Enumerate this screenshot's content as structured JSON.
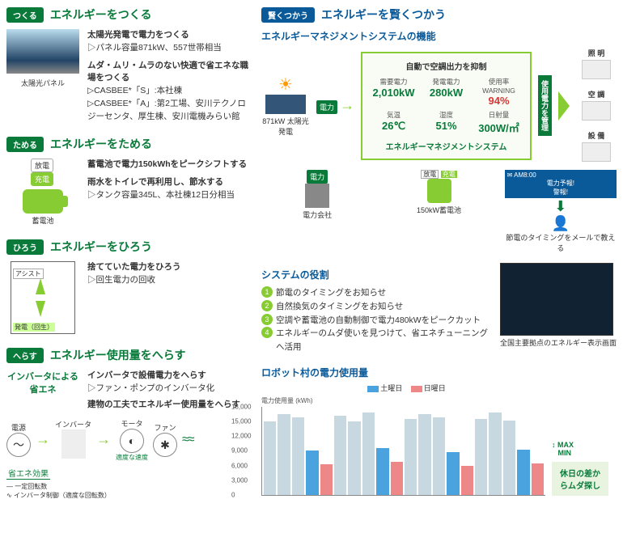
{
  "left": {
    "tsukuru": {
      "badge": "つくる",
      "title": "エネルギーをつくる",
      "icon_label": "太陽光パネル",
      "line1": "太陽光発電で電力をつくる",
      "line2": "▷パネル容量871kW、557世帯相当",
      "line3": "ムダ・ムリ・ムラのない快適で省エネな職場をつくる",
      "line4": "▷CASBEE*「S」:本社棟",
      "line5": "▷CASBEE*「A」:第2工場、安川テクノロジーセンタ、厚生棟、安川電機みらい館"
    },
    "tameru": {
      "badge": "ためる",
      "title": "エネルギーをためる",
      "tag1": "放電",
      "tag2": "充電",
      "icon_label": "蓄電池",
      "line1": "蓄電池で電力150kWhをピークシフトする",
      "line2": "雨水をトイレで再利用し、節水する",
      "line3": "▷タンク容量345L、本社棟12日分相当"
    },
    "hirou": {
      "badge": "ひろう",
      "title": "エネルギーをひろう",
      "assist": "アシスト",
      "gen": "発電（回生）",
      "line1": "捨てていた電力をひろう",
      "line2": "▷回生電力の回收"
    },
    "herasu": {
      "badge": "へらす",
      "title": "エネルギー使用量をへらす",
      "side_label": "インバータによる省エネ",
      "line1": "インバータで設備電力をへらす",
      "line2": "▷ファン・ポンプのインバータ化",
      "line3": "建物の工夫でエネルギー使用量をへらす",
      "d_power": "電源",
      "d_inv": "インバータ",
      "d_motor": "モータ",
      "d_fan": "ファン",
      "d_speed": "適度な速度",
      "d_eff": "省エネ効果",
      "d_const": "一定回転数",
      "d_ctrl": "インバータ制御（適度な回転数）"
    }
  },
  "right": {
    "header": {
      "badge": "賢くつかう",
      "title": "エネルギーを賢くつかう"
    },
    "ems_title": "エネルギーマネジメントシステムの機能",
    "solar_label": "871kW 太陽光発電",
    "denryoku": "電力",
    "box": {
      "title": "自動で空調出力を抑制",
      "c1l": "需要電力",
      "c1v": "2,010kW",
      "c2l": "発電電力",
      "c2v": "280kW",
      "c3l": "使用率 WARNING",
      "c3v": "94%",
      "c4l": "気温",
      "c4v": "26℃",
      "c5l": "湿度",
      "c5v": "51%",
      "c6l": "日射量",
      "c6v": "300W/㎡",
      "foot": "エネルギーマネジメントシステム"
    },
    "vbar": "使用電力を管理",
    "outputs": {
      "o1": "照 明",
      "o2": "空 調",
      "o3": "設 備"
    },
    "bottom": {
      "b1l": "電力",
      "b1": "電力会社",
      "b2a": "放電",
      "b2b": "充電",
      "b2": "150kW蓄電池",
      "mail1": "AM8:00",
      "mail2": "電力予報!",
      "mail3": "警報!",
      "b3": "節電のタイミングをメールで教える"
    },
    "roles": {
      "title": "システムの役割",
      "r1": "節電のタイミングをお知らせ",
      "r2": "自然換気のタイミングをお知らせ",
      "r3": "空調や蓄電池の自動制御で電力480kWをピークカット",
      "r4": "エネルギーのムダ使いを見つけて、省エネチューニングへ活用",
      "screen_cap": "全国主要拠点のエネルギー表示画面"
    },
    "chart": {
      "title": "ロボット村の電力使用量",
      "ylabel": "電力使用量 (kWh)",
      "sat_label": "土曜日",
      "sun_label": "日曜日",
      "yticks": [
        18000,
        15000,
        12000,
        9000,
        6000,
        3000,
        0
      ],
      "weekday": [
        15000,
        16500,
        15800,
        16000,
        15500,
        16200,
        15000,
        16800,
        15200,
        16000,
        15600,
        16500,
        15800,
        15000,
        16200,
        15500,
        16800,
        15200,
        16000,
        15600
      ],
      "sat_idx": [
        3,
        8,
        13,
        18
      ],
      "sat_val": [
        9000,
        9500,
        8800,
        9200
      ],
      "sun_idx": [
        4,
        9,
        14,
        19
      ],
      "sun_val": [
        6200,
        6800,
        6000,
        6500
      ],
      "max": "MAX",
      "min": "MIN",
      "note": "休日の差からムダ探し",
      "colors": {
        "weekday": "#c8d8e0",
        "sat": "#4aa3df",
        "sun": "#e88888"
      }
    }
  }
}
